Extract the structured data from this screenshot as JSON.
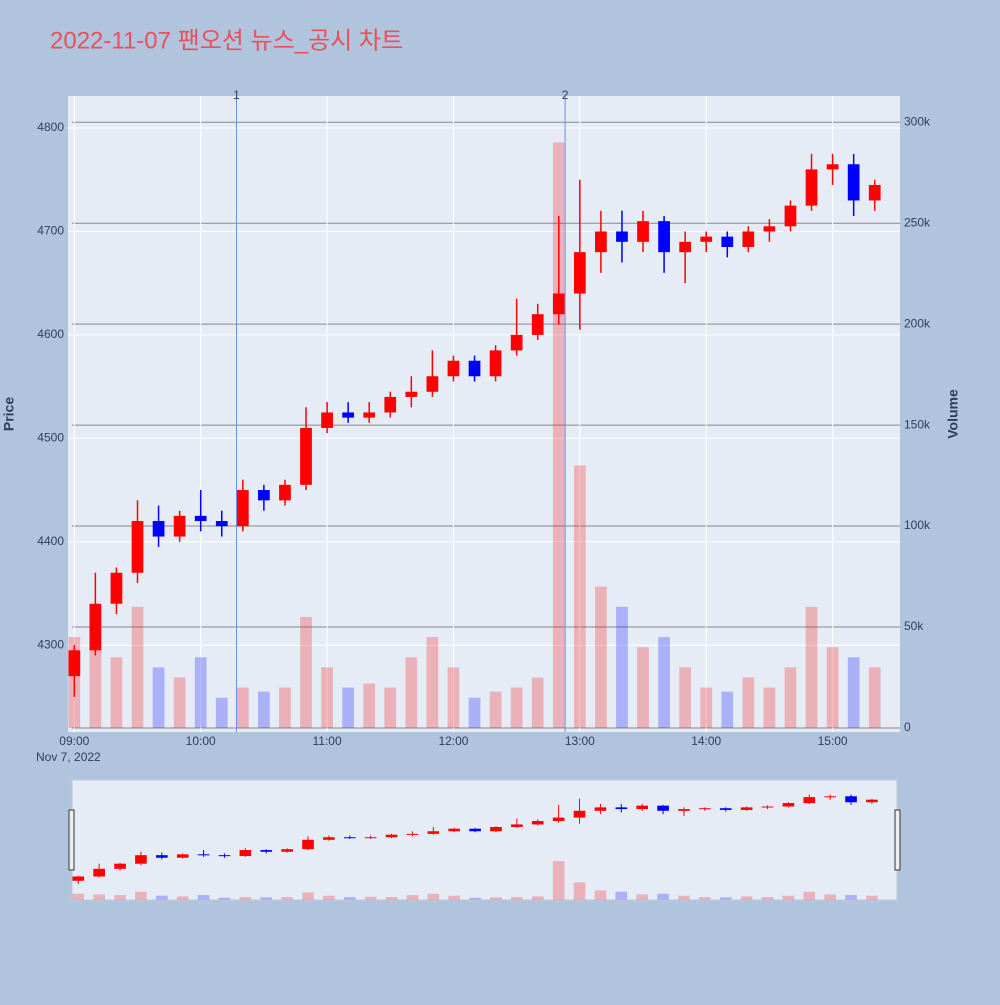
{
  "chart_data": {
    "type": "candlestick",
    "title": "2022-11-07 팬오션 뉴스_공시 차트",
    "y_label": "Price",
    "y2_label": "Volume",
    "date_label": "Nov 7, 2022",
    "increasing_color": "#ff0000",
    "decreasing_color": "#0000ff",
    "x": [
      "2022-11-07 09:00",
      "2022-11-07 09:10",
      "2022-11-07 09:20",
      "2022-11-07 09:30",
      "2022-11-07 09:40",
      "2022-11-07 09:50",
      "2022-11-07 10:00",
      "2022-11-07 10:10",
      "2022-11-07 10:20",
      "2022-11-07 10:30",
      "2022-11-07 10:40",
      "2022-11-07 10:50",
      "2022-11-07 11:00",
      "2022-11-07 11:10",
      "2022-11-07 11:20",
      "2022-11-07 11:30",
      "2022-11-07 11:40",
      "2022-11-07 11:50",
      "2022-11-07 12:00",
      "2022-11-07 12:10",
      "2022-11-07 12:20",
      "2022-11-07 12:30",
      "2022-11-07 12:40",
      "2022-11-07 12:50",
      "2022-11-07 13:00",
      "2022-11-07 13:10",
      "2022-11-07 13:20",
      "2022-11-07 13:30",
      "2022-11-07 13:40",
      "2022-11-07 13:50",
      "2022-11-07 14:00",
      "2022-11-07 14:10",
      "2022-11-07 14:20",
      "2022-11-07 14:30",
      "2022-11-07 14:40",
      "2022-11-07 14:50",
      "2022-11-07 15:00",
      "2022-11-07 15:10",
      "2022-11-07 15:20"
    ],
    "open": [
      4270,
      4295,
      4340,
      4370,
      4420,
      4405,
      4425,
      4420,
      4415,
      4450,
      4440,
      4455,
      4510,
      4525,
      4520,
      4525,
      4540,
      4545,
      4560,
      4575,
      4560,
      4585,
      4600,
      4620,
      4640,
      4680,
      4700,
      4690,
      4710,
      4680,
      4690,
      4695,
      4685,
      4700,
      4705,
      4725,
      4760,
      4765,
      4730
    ],
    "high": [
      4300,
      4370,
      4375,
      4440,
      4435,
      4430,
      4450,
      4430,
      4460,
      4455,
      4460,
      4530,
      4535,
      4535,
      4535,
      4545,
      4560,
      4585,
      4580,
      4580,
      4590,
      4635,
      4630,
      4715,
      4750,
      4720,
      4720,
      4720,
      4715,
      4700,
      4700,
      4700,
      4705,
      4712,
      4730,
      4775,
      4775,
      4775,
      4750
    ],
    "low": [
      4250,
      4290,
      4330,
      4360,
      4395,
      4400,
      4410,
      4405,
      4410,
      4430,
      4435,
      4450,
      4505,
      4515,
      4515,
      4520,
      4530,
      4540,
      4555,
      4555,
      4555,
      4580,
      4595,
      4610,
      4605,
      4660,
      4670,
      4680,
      4660,
      4650,
      4680,
      4675,
      4680,
      4690,
      4700,
      4720,
      4745,
      4715,
      4720
    ],
    "close": [
      4295,
      4340,
      4370,
      4420,
      4405,
      4425,
      4420,
      4415,
      4450,
      4440,
      4455,
      4510,
      4525,
      4520,
      4525,
      4540,
      4545,
      4560,
      4575,
      4560,
      4585,
      4600,
      4620,
      4640,
      4680,
      4700,
      4690,
      4710,
      4680,
      4690,
      4695,
      4685,
      4700,
      4705,
      4725,
      4760,
      4765,
      4730,
      4745
    ],
    "volume": [
      45000,
      40000,
      35000,
      60000,
      30000,
      25000,
      35000,
      15000,
      20000,
      18000,
      20000,
      55000,
      30000,
      20000,
      22000,
      20000,
      35000,
      45000,
      30000,
      15000,
      18000,
      20000,
      25000,
      290000,
      130000,
      70000,
      60000,
      40000,
      45000,
      30000,
      20000,
      18000,
      25000,
      20000,
      30000,
      60000,
      40000,
      35000,
      30000
    ],
    "events": [
      {
        "x": "2022-11-07 10:17",
        "label": "1"
      },
      {
        "x": "2022-11-07 12:53",
        "label": "2"
      }
    ],
    "xlim": [
      "2022-11-07 08:57",
      "2022-11-07 15:32"
    ],
    "xticks": [
      {
        "value": "2022-11-07 09:00",
        "label": "09:00"
      },
      {
        "value": "2022-11-07 10:00",
        "label": "10:00"
      },
      {
        "value": "2022-11-07 11:00",
        "label": "11:00"
      },
      {
        "value": "2022-11-07 12:00",
        "label": "12:00"
      },
      {
        "value": "2022-11-07 13:00",
        "label": "13:00"
      },
      {
        "value": "2022-11-07 14:00",
        "label": "14:00"
      },
      {
        "value": "2022-11-07 15:00",
        "label": "15:00"
      }
    ],
    "ylim": [
      4216,
      4831
    ],
    "yticks": [
      4300,
      4400,
      4500,
      4600,
      4700,
      4800
    ],
    "y2lim": [
      -2000,
      313000
    ],
    "y2ticks": [
      0,
      {
        "value": 50000,
        "label": "50k"
      },
      {
        "value": 100000,
        "label": "100k"
      },
      {
        "value": 150000,
        "label": "150k"
      },
      {
        "value": 200000,
        "label": "200k"
      },
      {
        "value": 250000,
        "label": "250k"
      },
      {
        "value": 300000,
        "label": "300k"
      }
    ],
    "grid": true,
    "rangeslider": true
  }
}
